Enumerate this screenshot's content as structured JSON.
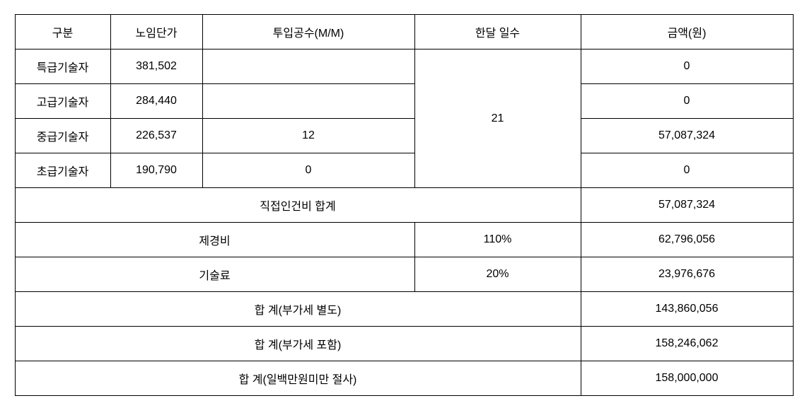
{
  "table": {
    "headers": {
      "category": "구분",
      "unit_price": "노임단가",
      "mm": "투입공수(M/M)",
      "days_per_month": "한달 일수",
      "amount": "금액(원)"
    },
    "days_value": "21",
    "rows": [
      {
        "category": "특급기술자",
        "unit_price": "381,502",
        "mm": "",
        "amount": "0"
      },
      {
        "category": "고급기술자",
        "unit_price": "284,440",
        "mm": "",
        "amount": "0"
      },
      {
        "category": "중급기술자",
        "unit_price": "226,537",
        "mm": "12",
        "amount": "57,087,324"
      },
      {
        "category": "초급기술자",
        "unit_price": "190,790",
        "mm": "0",
        "amount": "0"
      }
    ],
    "summary": {
      "direct_labor": {
        "label": "직접인건비 합계",
        "amount": "57,087,324"
      },
      "overhead": {
        "label": "제경비",
        "percent": "110%",
        "amount": "62,796,056"
      },
      "tech_fee": {
        "label": "기술료",
        "percent": "20%",
        "amount": "23,976,676"
      },
      "total_excl_vat": {
        "label": "합 계(부가세 별도)",
        "amount": "143,860,056"
      },
      "total_incl_vat": {
        "label": "합 계(부가세 포함)",
        "amount": "158,246,062"
      },
      "total_rounded": {
        "label": "합 계(일백만원미만 절사)",
        "amount": "158,000,000"
      }
    },
    "styling": {
      "border_color": "#000000",
      "background_color": "#ffffff",
      "text_color": "#000000",
      "font_size": 16,
      "cell_padding": 12
    }
  }
}
